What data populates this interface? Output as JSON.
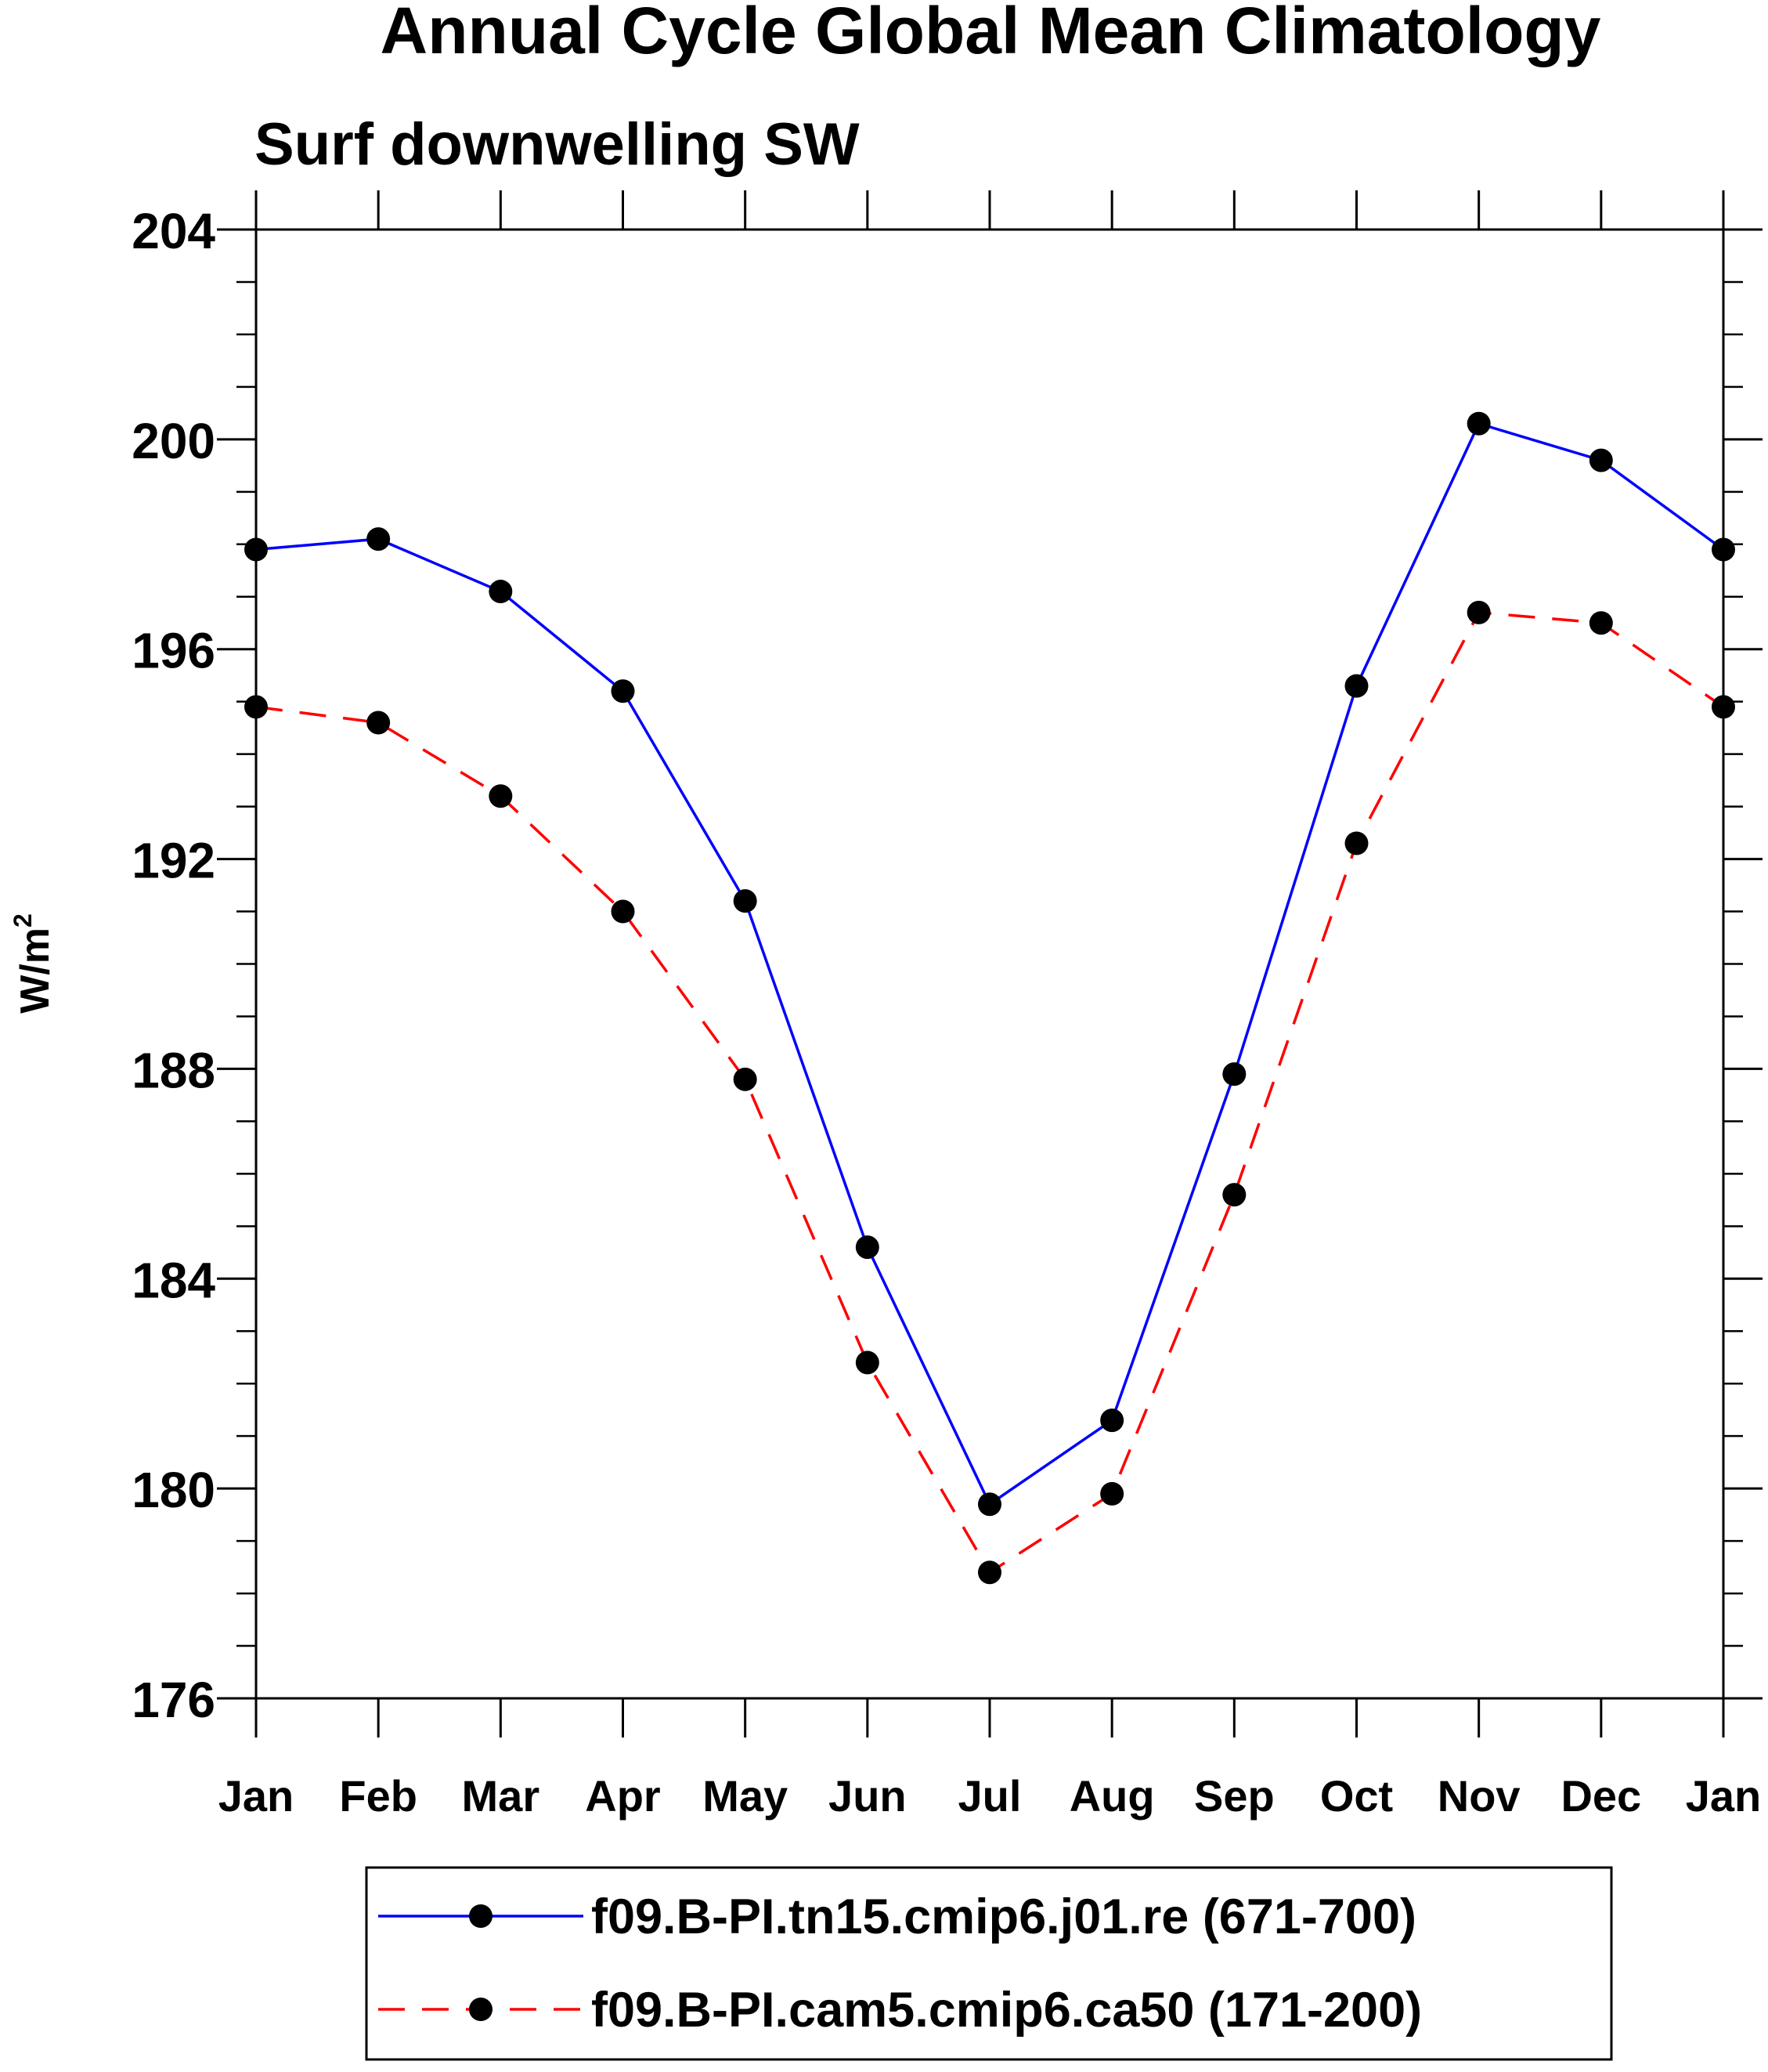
{
  "chart_data": {
    "type": "line",
    "title": "Annual Cycle Global Mean Climatology",
    "subtitle": "Surf downwelling SW",
    "ylabel": "W/m",
    "ylabel_superscript": "2",
    "xlabel": "",
    "categories": [
      "Jan",
      "Feb",
      "Mar",
      "Apr",
      "May",
      "Jun",
      "Jul",
      "Aug",
      "Sep",
      "Oct",
      "Nov",
      "Dec",
      "Jan"
    ],
    "ylim": [
      176,
      204
    ],
    "yticks": [
      176,
      180,
      184,
      188,
      192,
      196,
      200,
      204
    ],
    "yminor_step": 1,
    "grid": false,
    "legend_position": "bottom",
    "series": [
      {
        "name": "f09.B-PI.tn15.cmip6.j01.re (671-700)",
        "color": "#0000ff",
        "dash": "solid",
        "values": [
          197.9,
          198.1,
          197.1,
          195.2,
          191.2,
          184.6,
          179.7,
          181.3,
          187.9,
          195.3,
          200.3,
          199.6,
          197.9
        ]
      },
      {
        "name": "f09.B-PI.cam5.cmip6.ca50 (171-200)",
        "color": "#ff0000",
        "dash": "dashed",
        "values": [
          194.9,
          194.6,
          193.2,
          191.0,
          187.8,
          182.4,
          178.4,
          179.9,
          185.6,
          192.3,
          196.7,
          196.5,
          194.9
        ]
      }
    ]
  }
}
